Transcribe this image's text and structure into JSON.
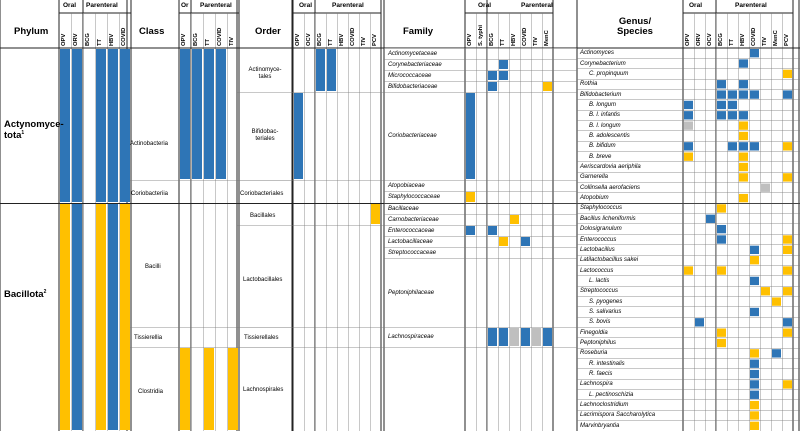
{
  "colors": {
    "blue": "#2E75B6",
    "yellow": "#FFC000",
    "gray": "#BFBFBF"
  },
  "legend": {
    "oral": "Oral",
    "parenteral": "Parenteral",
    "oral_abbrev": "Or"
  },
  "phylum": {
    "header": "Phylum",
    "cols": [
      "OPV",
      "ORV",
      "BCG",
      "TT",
      "HBV",
      "COVID"
    ],
    "rows": [
      {
        "label": "Actynomyce-\ntota",
        "sup": "1"
      },
      {
        "label": "Bacillota",
        "sup": "2"
      }
    ]
  },
  "class": {
    "header": "Class",
    "cols": [
      "OPV",
      "BCG",
      "TT",
      "COVID",
      "TIV"
    ],
    "rows": [
      "Actinobacteria",
      "Coriobacteriia",
      "Bacilli",
      "Tissierellia",
      "Clostridia"
    ]
  },
  "order": {
    "header": "Order",
    "cols": [
      "OPV",
      "OCV",
      "BCG",
      "TT",
      "HBV",
      "COVID",
      "TIV",
      "PCV"
    ],
    "rows": [
      "Actinomyce-\ntales",
      "Bifidobac-\nteriales",
      "Coriobacteriales",
      "Bacillales",
      "Lactobacillales",
      "Tissierellales",
      "Lachnospirales"
    ]
  },
  "family": {
    "header": "Family",
    "cols": [
      "OPV",
      "S. typhi",
      "BCG",
      "TT",
      "HBV",
      "COVID",
      "TIV",
      "MenC"
    ],
    "rows": [
      "Actinomycetaceae",
      "Corynebacteriaceae",
      "Micrococcaceae",
      "Bifidobacteriaceae",
      "Coriobacteriaceae",
      "Atopobiaceae",
      "Staphylococcaceae",
      "Bacillaceae",
      "Carnobacteriaceae",
      "Enterococcaceae",
      "Lactobacillaceae",
      "Streptococcaceae",
      "Peptoniphilaceae",
      "Lachnospiraceae"
    ]
  },
  "genus": {
    "header": "Genus/\nSpecies",
    "cols": [
      "OPV",
      "ORV",
      "OCV",
      "BCG",
      "TT",
      "HBV",
      "COVID",
      "TIV",
      "MenC",
      "PCV"
    ],
    "rows": [
      "Actinomyces",
      "Corynebacterium",
      "C. propinquum",
      "Rothia",
      "Bifidobacterium",
      "B. longum",
      "B. l. infantis",
      "B. l. longum",
      "B. adolescentis",
      "B. bifidum",
      "B. breve",
      "Aeriscardovia aeriphila",
      "Garnerella",
      "Collinsella aerofaciens",
      "Atopobium",
      "Staphylococcus",
      "Bacillus licheniformis",
      "Dolosigranulum",
      "Enterococcus",
      "Lactobacillus",
      "Latilactobacillus sakei",
      "Lactococcus",
      "L. lactis",
      "Streptococcus",
      "S. pyogenes",
      "S. salivarius",
      "S. bovis",
      "Finegoldia",
      "Peptoniphilus",
      "Roseburia",
      "R. intestinalis",
      "R. faecis",
      "Lachnospira",
      "L. pectinoschizia",
      "Lachnoclostridium",
      "Lacrimispora Saccharolytica",
      "Marvinbryantia"
    ]
  },
  "cells": {
    "phylum": [
      [
        0,
        "b",
        0,
        0
      ],
      [
        1,
        "b",
        0,
        0
      ],
      [
        3,
        "b",
        0,
        0
      ],
      [
        4,
        "b",
        0,
        0
      ],
      [
        5,
        "b",
        0,
        0
      ],
      [
        0,
        "y",
        1,
        1
      ],
      [
        1,
        "b",
        1,
        1
      ],
      [
        3,
        "y",
        1,
        1
      ],
      [
        4,
        "b",
        1,
        1
      ],
      [
        5,
        "y",
        1,
        1
      ]
    ],
    "class": [
      [
        0,
        "b",
        0,
        0
      ],
      [
        1,
        "b",
        0,
        0
      ],
      [
        2,
        "b",
        0,
        0
      ],
      [
        3,
        "b",
        0,
        0
      ],
      [
        0,
        "y",
        4,
        4
      ],
      [
        2,
        "y",
        4,
        4
      ],
      [
        4,
        "y",
        4,
        4
      ]
    ],
    "order": [
      [
        2,
        "b",
        0,
        0
      ],
      [
        3,
        "b",
        0,
        0
      ],
      [
        0,
        "b",
        1,
        1
      ],
      [
        7,
        "y",
        3,
        3
      ]
    ],
    "family": [
      [
        3,
        "b",
        1,
        1
      ],
      [
        2,
        "b",
        2,
        2
      ],
      [
        3,
        "b",
        2,
        2
      ],
      [
        2,
        "b",
        3,
        3
      ],
      [
        7,
        "y",
        3,
        3
      ],
      [
        0,
        "b",
        4,
        4
      ],
      [
        0,
        "y",
        6,
        6
      ],
      [
        4,
        "y",
        8,
        8
      ],
      [
        0,
        "b",
        9,
        9
      ],
      [
        2,
        "b",
        9,
        9
      ],
      [
        3,
        "y",
        10,
        10
      ],
      [
        5,
        "b",
        10,
        10
      ],
      [
        2,
        "b",
        13,
        13
      ],
      [
        3,
        "b",
        13,
        13
      ],
      [
        4,
        "g",
        13,
        13
      ],
      [
        5,
        "b",
        13,
        13
      ],
      [
        6,
        "g",
        13,
        13
      ],
      [
        7,
        "b",
        13,
        13
      ]
    ],
    "genus": [
      [
        6,
        "b",
        0,
        0
      ],
      [
        5,
        "b",
        1,
        1
      ],
      [
        9,
        "y",
        2,
        2
      ],
      [
        3,
        "b",
        3,
        3
      ],
      [
        5,
        "b",
        3,
        3
      ],
      [
        3,
        "b",
        4,
        4
      ],
      [
        4,
        "b",
        4,
        4
      ],
      [
        5,
        "b",
        4,
        4
      ],
      [
        6,
        "b",
        4,
        4
      ],
      [
        9,
        "b",
        4,
        4
      ],
      [
        0,
        "b",
        5,
        5
      ],
      [
        3,
        "b",
        5,
        5
      ],
      [
        4,
        "b",
        5,
        5
      ],
      [
        0,
        "b",
        6,
        6
      ],
      [
        3,
        "b",
        6,
        6
      ],
      [
        4,
        "b",
        6,
        6
      ],
      [
        5,
        "b",
        6,
        6
      ],
      [
        0,
        "g",
        7,
        7
      ],
      [
        5,
        "y",
        7,
        7
      ],
      [
        5,
        "y",
        8,
        8
      ],
      [
        0,
        "b",
        9,
        9
      ],
      [
        4,
        "b",
        9,
        9
      ],
      [
        5,
        "b",
        9,
        9
      ],
      [
        6,
        "b",
        9,
        9
      ],
      [
        9,
        "y",
        9,
        9
      ],
      [
        0,
        "y",
        10,
        10
      ],
      [
        5,
        "y",
        10,
        10
      ],
      [
        5,
        "y",
        11,
        11
      ],
      [
        5,
        "y",
        12,
        12
      ],
      [
        9,
        "y",
        12,
        12
      ],
      [
        7,
        "g",
        13,
        13
      ],
      [
        5,
        "y",
        14,
        14
      ],
      [
        3,
        "y",
        15,
        15
      ],
      [
        2,
        "b",
        16,
        16
      ],
      [
        3,
        "b",
        17,
        17
      ],
      [
        3,
        "b",
        18,
        18
      ],
      [
        9,
        "y",
        18,
        18
      ],
      [
        6,
        "b",
        19,
        19
      ],
      [
        9,
        "y",
        19,
        19
      ],
      [
        6,
        "y",
        20,
        20
      ],
      [
        0,
        "y",
        21,
        21
      ],
      [
        3,
        "y",
        21,
        21
      ],
      [
        9,
        "y",
        21,
        21
      ],
      [
        6,
        "b",
        22,
        22
      ],
      [
        7,
        "y",
        23,
        23
      ],
      [
        9,
        "y",
        23,
        23
      ],
      [
        8,
        "y",
        24,
        24
      ],
      [
        6,
        "b",
        25,
        25
      ],
      [
        1,
        "b",
        26,
        26
      ],
      [
        9,
        "b",
        26,
        26
      ],
      [
        3,
        "y",
        27,
        27
      ],
      [
        9,
        "y",
        27,
        27
      ],
      [
        3,
        "y",
        28,
        28
      ],
      [
        6,
        "y",
        29,
        29
      ],
      [
        8,
        "b",
        29,
        29
      ],
      [
        6,
        "b",
        30,
        30
      ],
      [
        6,
        "b",
        31,
        31
      ],
      [
        6,
        "b",
        32,
        32
      ],
      [
        9,
        "y",
        32,
        32
      ],
      [
        6,
        "b",
        33,
        33
      ],
      [
        6,
        "y",
        34,
        34
      ],
      [
        6,
        "y",
        35,
        35
      ],
      [
        6,
        "y",
        36,
        36
      ]
    ]
  }
}
